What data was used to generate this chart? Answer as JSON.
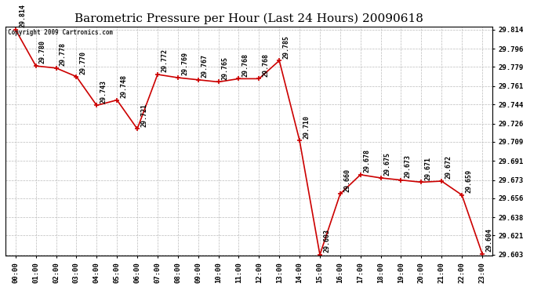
{
  "title": "Barometric Pressure per Hour (Last 24 Hours) 20090618",
  "copyright": "Copyright 2009 Cartronics.com",
  "hours": [
    "00:00",
    "01:00",
    "02:00",
    "03:00",
    "04:00",
    "05:00",
    "06:00",
    "07:00",
    "08:00",
    "09:00",
    "10:00",
    "11:00",
    "12:00",
    "13:00",
    "14:00",
    "15:00",
    "16:00",
    "17:00",
    "18:00",
    "19:00",
    "20:00",
    "21:00",
    "22:00",
    "23:00"
  ],
  "values": [
    29.814,
    29.78,
    29.778,
    29.77,
    29.743,
    29.748,
    29.721,
    29.772,
    29.769,
    29.767,
    29.765,
    29.768,
    29.768,
    29.785,
    29.71,
    29.603,
    29.66,
    29.678,
    29.675,
    29.673,
    29.671,
    29.672,
    29.659,
    29.604
  ],
  "ylim_low": 29.603,
  "ylim_high": 29.817,
  "yticks": [
    29.814,
    29.796,
    29.779,
    29.761,
    29.744,
    29.726,
    29.709,
    29.691,
    29.673,
    29.656,
    29.638,
    29.621,
    29.603
  ],
  "line_color": "#cc0000",
  "bg_color": "#ffffff",
  "grid_color": "#bbbbbb",
  "title_fontsize": 11,
  "tick_fontsize": 6.5,
  "annotation_fontsize": 6
}
